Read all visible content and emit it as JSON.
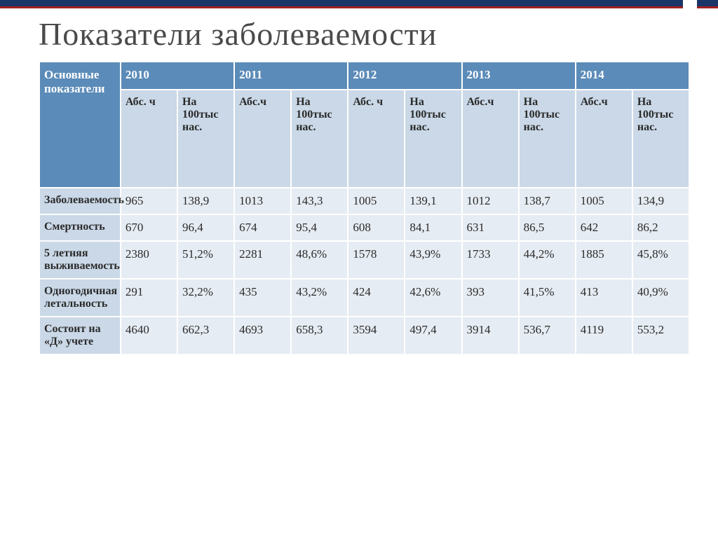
{
  "title": "Показатели заболеваемости",
  "header": {
    "main_label": "Основные показатели",
    "years": [
      "2010",
      "2011",
      "2012",
      "2013",
      "2014"
    ],
    "sub_abs": "Абс.ч",
    "sub_abs_break": "Абс. ч",
    "sub_rate": "На 100тыс нас."
  },
  "rows": [
    {
      "label": "Заболеваемость",
      "data": [
        "965",
        "138,9",
        "1013",
        "143,3",
        "1005",
        "139,1",
        "1012",
        "138,7",
        "1005",
        "134,9"
      ]
    },
    {
      "label": "Смертность",
      "data": [
        "670",
        "96,4",
        "674",
        "95,4",
        "608",
        "84,1",
        "631",
        "86,5",
        "642",
        "86,2"
      ]
    },
    {
      "label": "5 летняя выживаемость",
      "data": [
        "2380",
        "51,2%",
        "2281",
        "48,6%",
        "1578",
        "43,9%",
        "1733",
        "44,2%",
        "1885",
        "45,8%"
      ]
    },
    {
      "label": "Одногодичная летальность",
      "data": [
        "291",
        "32,2%",
        "435",
        "43,2%",
        "424",
        "42,6%",
        "393",
        "41,5%",
        "413",
        "40,9%"
      ]
    },
    {
      "label": "Состоит на «Д» учете",
      "data": [
        "4640",
        "662,3",
        "4693",
        "658,3",
        "3594",
        "497,4",
        "3914",
        "536,7",
        "4119",
        "553,2"
      ]
    }
  ],
  "colors": {
    "header_bg": "#5b8bb8",
    "subheader_bg": "#cad8e7",
    "datacell_bg": "#e6ecf3",
    "border": "#ffffff",
    "top_bar": "#1a3668",
    "red_accent": "#a02020",
    "title_color": "#4a4a4a"
  }
}
